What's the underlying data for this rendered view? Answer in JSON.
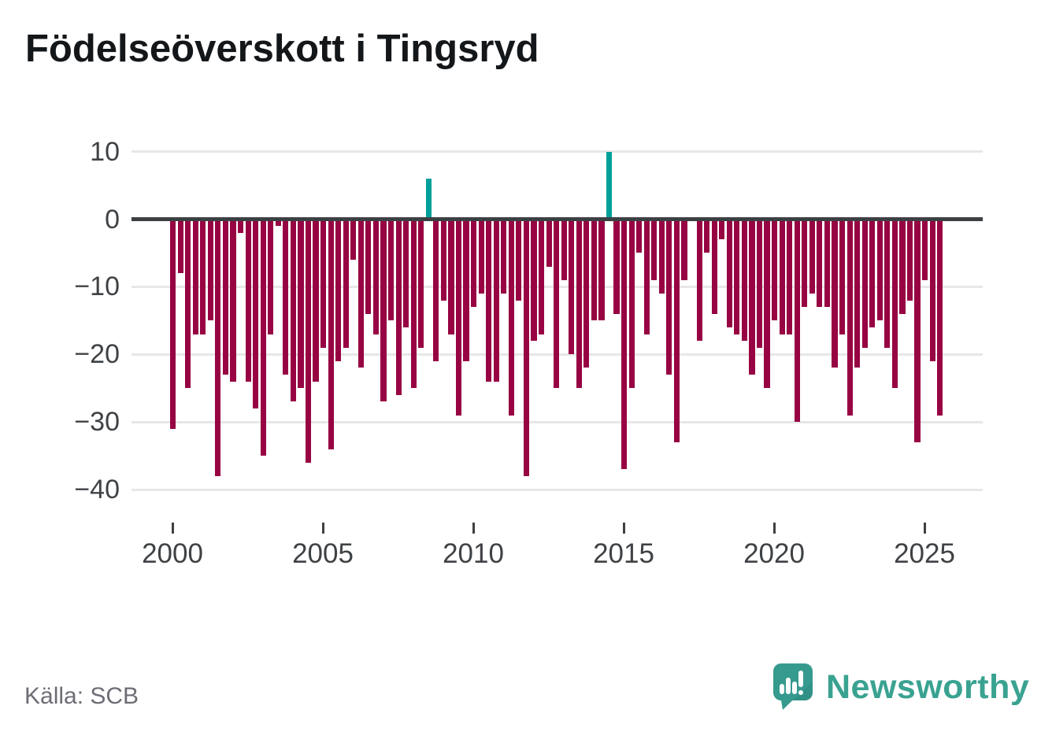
{
  "title": "Födelseöverskott i Tingsryd",
  "source": "Källa: SCB",
  "branding": {
    "name": "Newsworthy",
    "logo_icon": "speech-bubble-bar-chart-icon"
  },
  "colors": {
    "negative_bar": "#970343",
    "positive_bar": "#00a09a",
    "gridline": "#e7e7e7",
    "zero_line": "#3d4043",
    "axis_label": "#3f4245",
    "source_text": "#6d6d76",
    "brand_teal": "#3aa291",
    "title_text": "#14171a"
  },
  "chart_data": {
    "type": "bar",
    "title": "Födelseöverskott i Tingsryd",
    "frequency": "quarterly",
    "start_period": "2000Q1",
    "end_period": "2025Q3",
    "ylabel": "",
    "xlabel": "",
    "ylim": [
      -40,
      10
    ],
    "grid": true,
    "legend": "none",
    "yticks": [
      {
        "label": "10",
        "value": 10
      },
      {
        "label": "0",
        "value": 0
      },
      {
        "label": "−10",
        "value": -10
      },
      {
        "label": "−20",
        "value": -20
      },
      {
        "label": "−30",
        "value": -30
      },
      {
        "label": "−40",
        "value": -40
      }
    ],
    "xticks": [
      {
        "label": "2000",
        "year": 2000
      },
      {
        "label": "2005",
        "year": 2005
      },
      {
        "label": "2010",
        "year": 2010
      },
      {
        "label": "2015",
        "year": 2015
      },
      {
        "label": "2020",
        "year": 2020
      },
      {
        "label": "2025",
        "year": 2025
      }
    ],
    "values": [
      -31,
      -8,
      -25,
      -17,
      -17,
      -15,
      -38,
      -23,
      -24,
      -2,
      -24,
      -28,
      -35,
      -17,
      -1,
      -23,
      -27,
      -25,
      -36,
      -24,
      -19,
      -34,
      -21,
      -19,
      -6,
      -22,
      -14,
      -17,
      -27,
      -15,
      -26,
      -16,
      -25,
      -19,
      6,
      -21,
      -12,
      -17,
      -29,
      -21,
      -13,
      -11,
      -24,
      -24,
      -11,
      -29,
      -12,
      -38,
      -18,
      -17,
      -7,
      -25,
      -9,
      -20,
      -25,
      -22,
      -15,
      -15,
      10,
      -14,
      -37,
      -25,
      -5,
      -17,
      -9,
      -11,
      -23,
      -33,
      -9,
      0,
      -18,
      -5,
      -14,
      -3,
      -16,
      -17,
      -18,
      -23,
      -19,
      -25,
      -15,
      -17,
      -17,
      -30,
      -13,
      -11,
      -13,
      -13,
      -22,
      -17,
      -29,
      -22,
      -19,
      -16,
      -15,
      -19,
      -25,
      -14,
      -12,
      -33,
      -9,
      -21,
      -29
    ]
  }
}
